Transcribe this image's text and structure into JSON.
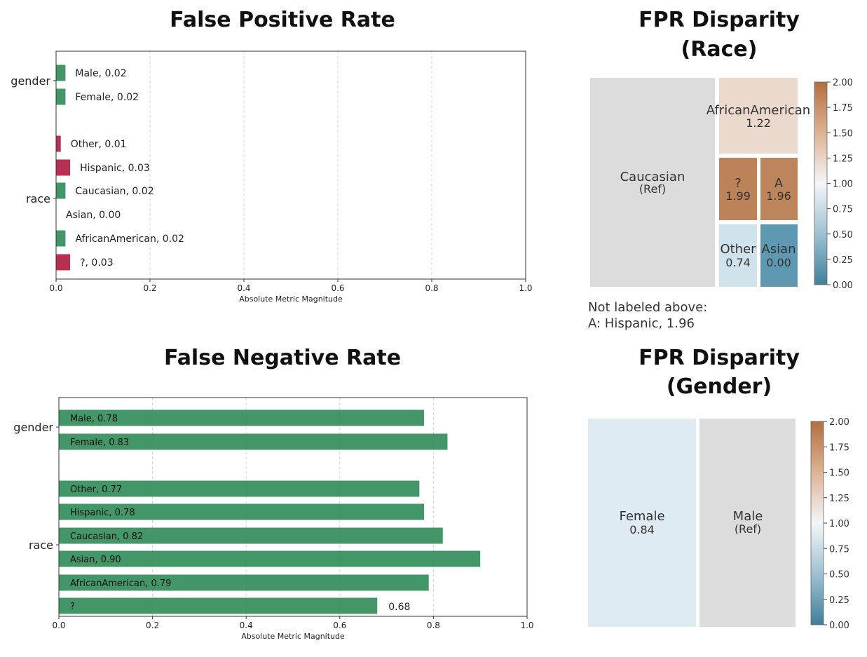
{
  "chart_data": [
    {
      "type": "bar",
      "orientation": "horizontal",
      "title": "False Positive Rate",
      "xlabel": "Absolute Metric Magnitude",
      "xlim": [
        0,
        1.0
      ],
      "xticks": [
        "0.0",
        "0.2",
        "0.4",
        "0.6",
        "0.8",
        "1.0"
      ],
      "groups": [
        "gender",
        "race"
      ],
      "bars": [
        {
          "group": "gender",
          "label": "Male, 0.02",
          "value": 0.02,
          "color": "#2e8b57"
        },
        {
          "group": "gender",
          "label": "Female, 0.02",
          "value": 0.02,
          "color": "#2e8b57"
        },
        {
          "group": "race",
          "label": "Other, 0.01",
          "value": 0.01,
          "color": "#b0183f"
        },
        {
          "group": "race",
          "label": "Hispanic, 0.03",
          "value": 0.03,
          "color": "#b0183f"
        },
        {
          "group": "race",
          "label": "Caucasian, 0.02",
          "value": 0.02,
          "color": "#2e8b57"
        },
        {
          "group": "race",
          "label": "Asian, 0.00",
          "value": 0.0,
          "color": "#2e8b57"
        },
        {
          "group": "race",
          "label": "AfricanAmerican, 0.02",
          "value": 0.02,
          "color": "#2e8b57"
        },
        {
          "group": "race",
          "label": "?, 0.03",
          "value": 0.03,
          "color": "#b0183f"
        }
      ]
    },
    {
      "type": "bar",
      "orientation": "horizontal",
      "title": "False Negative Rate",
      "xlabel": "Absolute Metric Magnitude",
      "xlim": [
        0,
        1.0
      ],
      "xticks": [
        "0.0",
        "0.2",
        "0.4",
        "0.6",
        "0.8",
        "1.0"
      ],
      "groups": [
        "gender",
        "race"
      ],
      "bars": [
        {
          "group": "gender",
          "label": "Male, 0.78",
          "value": 0.78,
          "color": "#2e8b57"
        },
        {
          "group": "gender",
          "label": "Female, 0.83",
          "value": 0.83,
          "color": "#2e8b57"
        },
        {
          "group": "race",
          "label": "Other, 0.77",
          "value": 0.77,
          "color": "#2e8b57"
        },
        {
          "group": "race",
          "label": "Hispanic, 0.78",
          "value": 0.78,
          "color": "#2e8b57"
        },
        {
          "group": "race",
          "label": "Caucasian, 0.82",
          "value": 0.82,
          "color": "#2e8b57"
        },
        {
          "group": "race",
          "label": "Asian, 0.90",
          "value": 0.9,
          "color": "#2e8b57"
        },
        {
          "group": "race",
          "label": "AfricanAmerican, 0.79",
          "value": 0.79,
          "color": "#2e8b57"
        },
        {
          "group": "race",
          "label": "?",
          "value": 0.68,
          "color": "#2e8b57",
          "outside_label": "0.68"
        }
      ]
    },
    {
      "type": "heatmap",
      "subtype": "treemap",
      "title": [
        "FPR Disparity",
        "(Race)"
      ],
      "colorbar": {
        "range": [
          0,
          2.0
        ],
        "ticks": [
          "0.00",
          "0.25",
          "0.50",
          "0.75",
          "1.00",
          "1.25",
          "1.50",
          "1.75",
          "2.00"
        ]
      },
      "cells": [
        {
          "name": "Caucasian",
          "sub": "(Ref)",
          "value": 1.0,
          "ref": true
        },
        {
          "name": "AfricanAmerican",
          "sub": "1.22",
          "value": 1.22
        },
        {
          "name": "?",
          "sub": "1.99",
          "value": 1.99
        },
        {
          "name": "A",
          "sub": "1.96",
          "value": 1.96
        },
        {
          "name": "Other",
          "sub": "0.74",
          "value": 0.74
        },
        {
          "name": "Asian",
          "sub": "0.00",
          "value": 0.0
        }
      ],
      "notes": [
        "Not labeled above:",
        "A: Hispanic, 1.96"
      ]
    },
    {
      "type": "heatmap",
      "subtype": "treemap",
      "title": [
        "FPR Disparity",
        "(Gender)"
      ],
      "colorbar": {
        "range": [
          0,
          2.0
        ],
        "ticks": [
          "0.00",
          "0.25",
          "0.50",
          "0.75",
          "1.00",
          "1.25",
          "1.50",
          "1.75",
          "2.00"
        ]
      },
      "cells": [
        {
          "name": "Female",
          "sub": "0.84",
          "value": 0.84
        },
        {
          "name": "Male",
          "sub": "(Ref)",
          "value": 1.0,
          "ref": true
        }
      ]
    }
  ]
}
